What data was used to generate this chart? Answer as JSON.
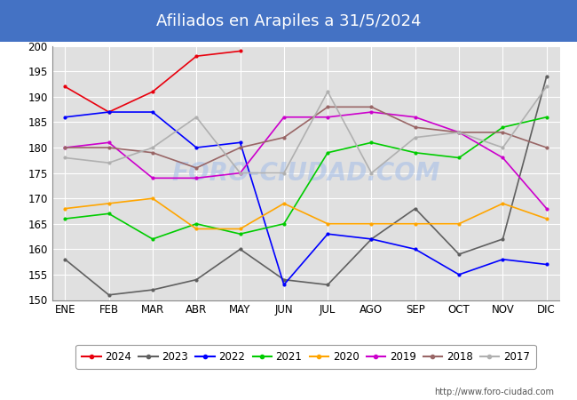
{
  "title": "Afiliados en Arapiles a 31/5/2024",
  "title_bg_color": "#4472c4",
  "title_text_color": "white",
  "ylim": [
    150,
    200
  ],
  "yticks": [
    150,
    155,
    160,
    165,
    170,
    175,
    180,
    185,
    190,
    195,
    200
  ],
  "months": [
    "ENE",
    "FEB",
    "MAR",
    "ABR",
    "MAY",
    "JUN",
    "JUL",
    "AGO",
    "SEP",
    "OCT",
    "NOV",
    "DIC"
  ],
  "watermark": "FORO-CIUDAD.COM",
  "footer": "http://www.foro-ciudad.com",
  "series": {
    "2024": {
      "color": "#e8000d",
      "data": [
        192,
        187,
        191,
        198,
        199,
        null,
        null,
        null,
        null,
        null,
        null,
        null
      ]
    },
    "2023": {
      "color": "#606060",
      "data": [
        158,
        151,
        152,
        154,
        160,
        154,
        153,
        162,
        168,
        159,
        162,
        194
      ]
    },
    "2022": {
      "color": "#0000ff",
      "data": [
        186,
        187,
        187,
        180,
        181,
        153,
        163,
        162,
        160,
        155,
        158,
        157
      ]
    },
    "2021": {
      "color": "#00cc00",
      "data": [
        166,
        167,
        162,
        165,
        163,
        165,
        179,
        181,
        179,
        178,
        184,
        186
      ]
    },
    "2020": {
      "color": "#ffa500",
      "data": [
        168,
        169,
        170,
        164,
        164,
        169,
        165,
        165,
        165,
        165,
        169,
        166
      ]
    },
    "2019": {
      "color": "#cc00cc",
      "data": [
        180,
        181,
        174,
        174,
        175,
        186,
        186,
        187,
        186,
        183,
        178,
        168
      ]
    },
    "2018": {
      "color": "#996666",
      "data": [
        180,
        180,
        179,
        176,
        180,
        182,
        188,
        188,
        184,
        183,
        183,
        180
      ]
    },
    "2017": {
      "color": "#b0b0b0",
      "data": [
        178,
        177,
        180,
        186,
        175,
        175,
        191,
        175,
        182,
        183,
        180,
        192
      ]
    }
  },
  "legend_order": [
    "2024",
    "2023",
    "2022",
    "2021",
    "2020",
    "2019",
    "2018",
    "2017"
  ]
}
